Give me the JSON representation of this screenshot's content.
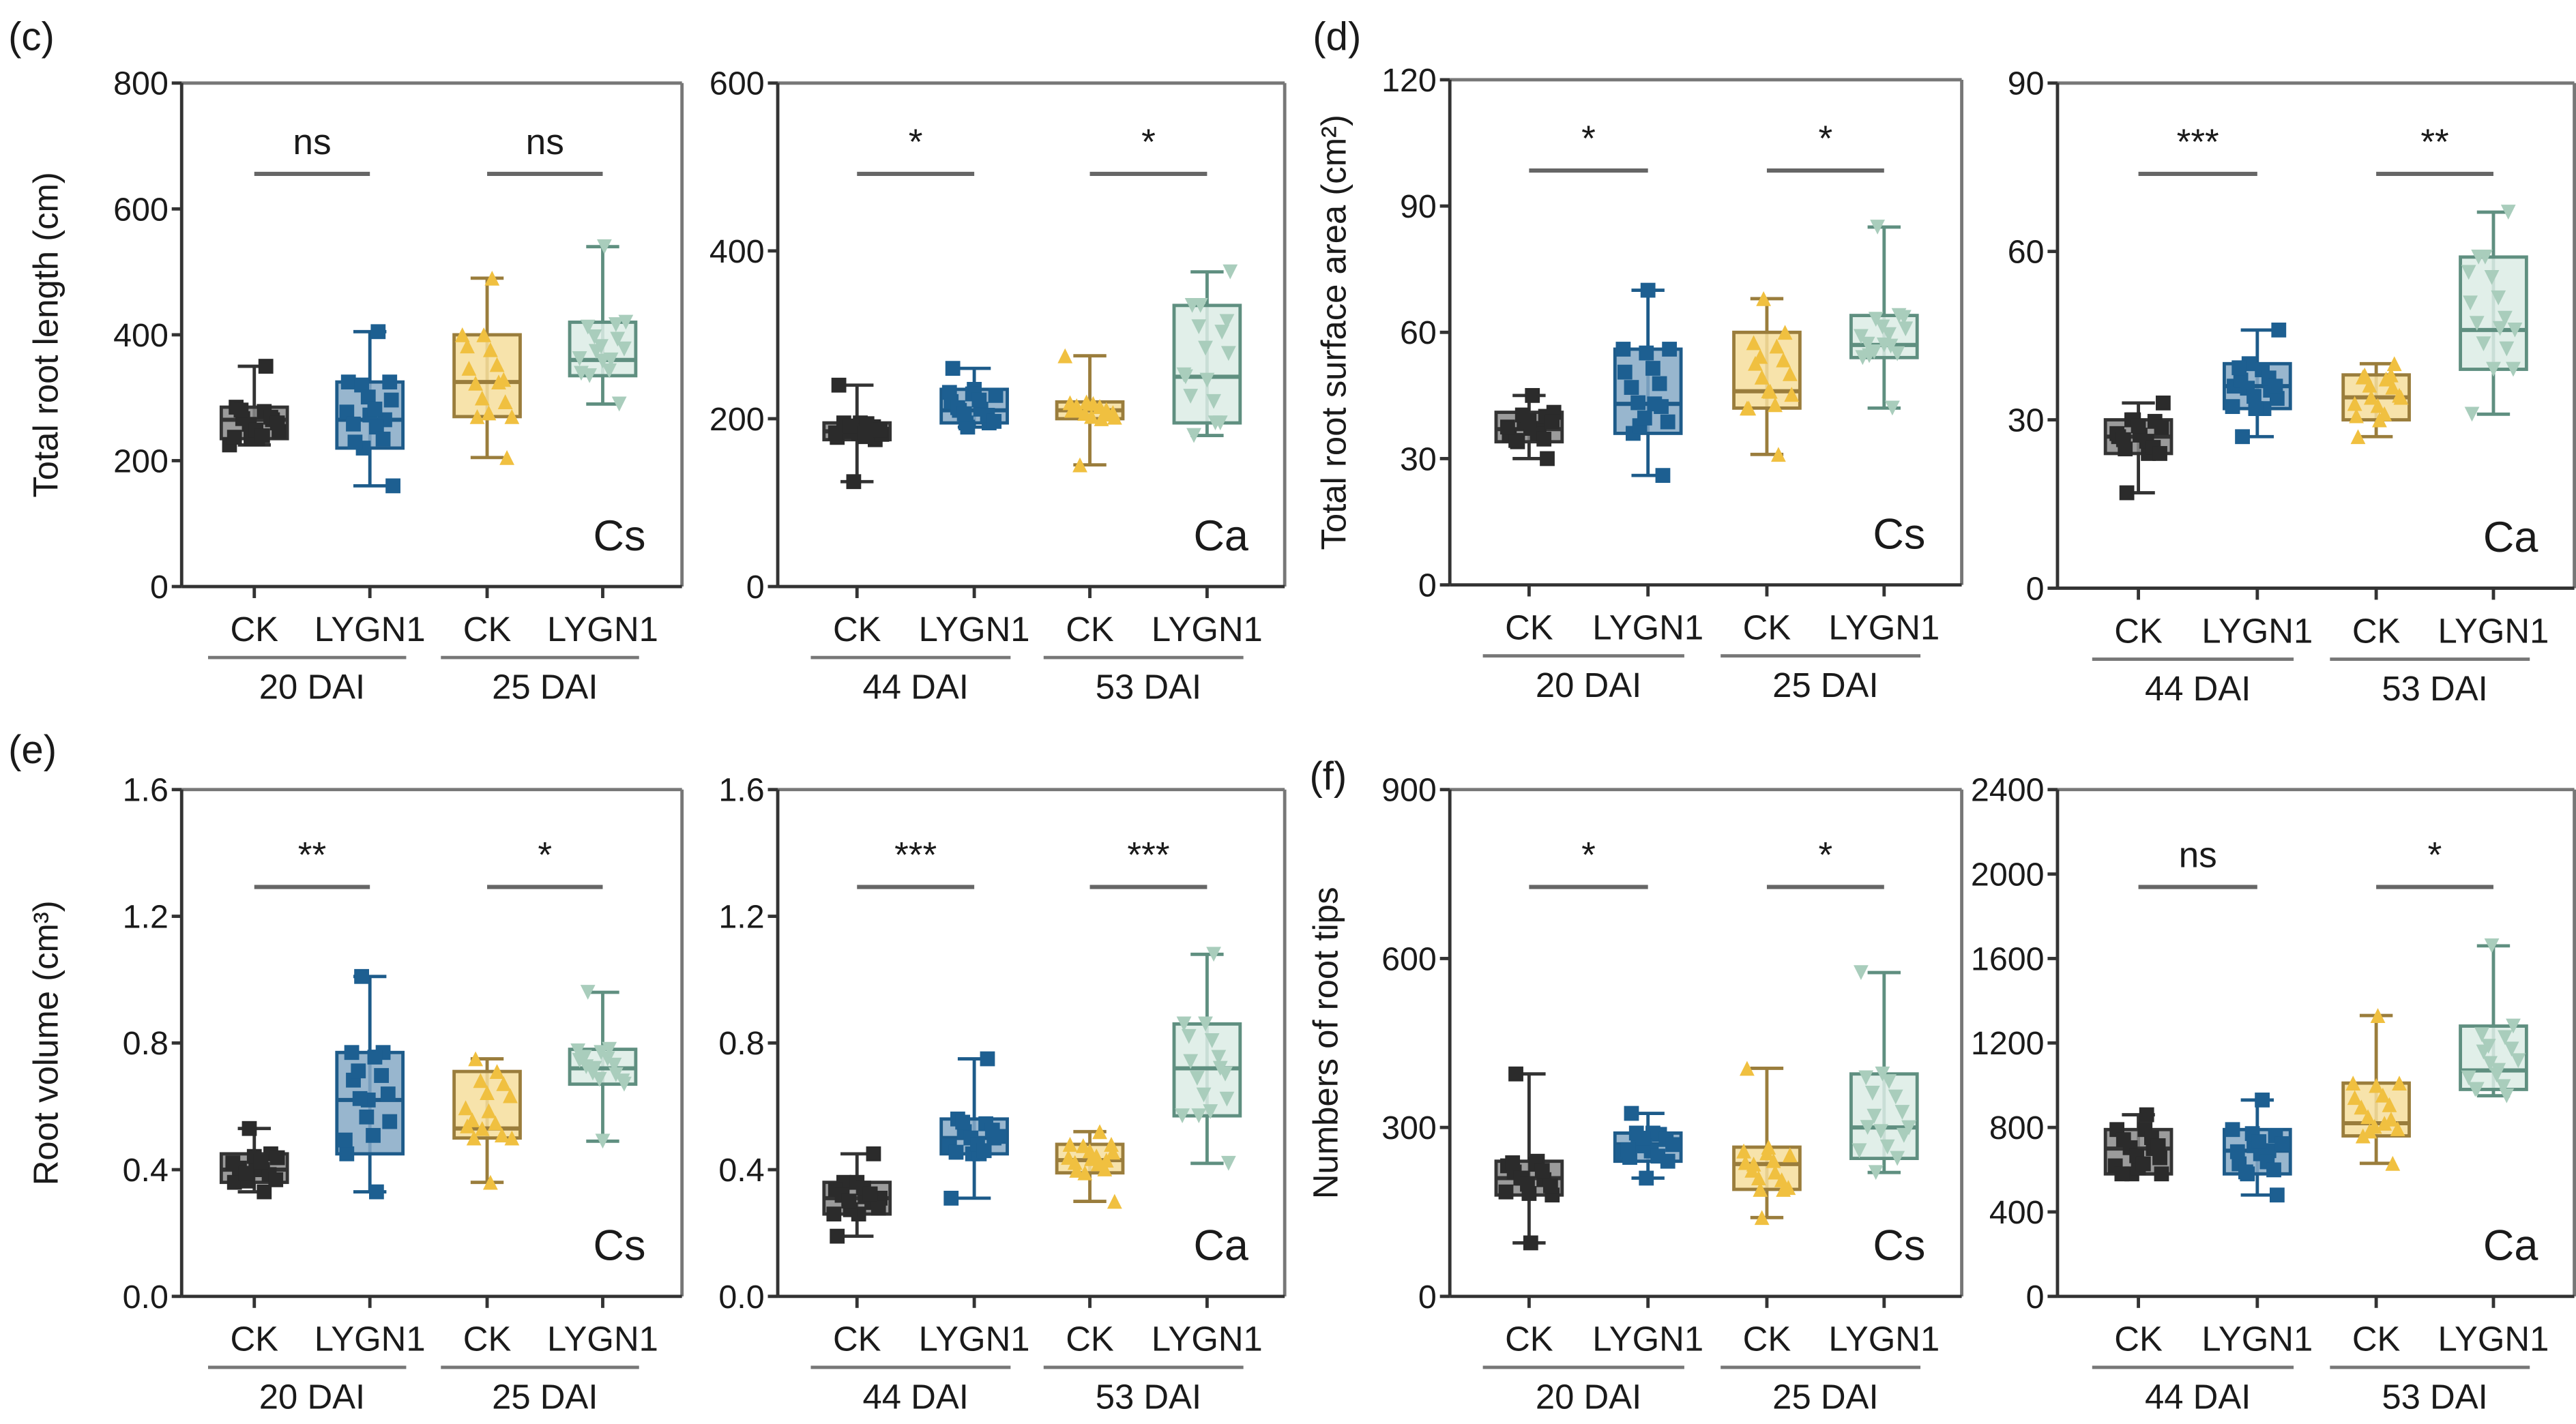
{
  "panel_letters": [
    "(c)",
    "(d)",
    "(e)",
    "(f)"
  ],
  "colors": {
    "CK_early": {
      "edge": "#333333",
      "fill": "#8a8a8a",
      "point": "#2b2b2b"
    },
    "LYGN1_early": {
      "edge": "#1d5b8a",
      "fill": "#86a9c6",
      "point": "#1d5f91"
    },
    "CK_late": {
      "edge": "#9a7d3c",
      "fill": "#f6de9c",
      "point": "#f0c040"
    },
    "LYGN1_late": {
      "edge": "#5f8f80",
      "fill": "#dcece5",
      "point": "#a9cdbc"
    }
  },
  "chart_data": [
    {
      "type": "box",
      "panel": "(c)",
      "ylabel": "Total root length (cm)",
      "ylim": [
        0,
        800
      ],
      "yticks": [
        "0",
        "200",
        "400",
        "600",
        "800"
      ],
      "species": "Cs",
      "groups": [
        {
          "label": "20 DAI",
          "categories": [
            "CK",
            "LYGN1"
          ]
        },
        {
          "label": "25 DAI",
          "categories": [
            "CK",
            "LYGN1"
          ]
        }
      ],
      "boxes": [
        {
          "min": 225,
          "q1": 235,
          "median": 265,
          "q3": 285,
          "max": 350
        },
        {
          "min": 160,
          "q1": 220,
          "median": 265,
          "q3": 325,
          "max": 405
        },
        {
          "min": 205,
          "q1": 270,
          "median": 325,
          "q3": 400,
          "max": 490
        },
        {
          "min": 290,
          "q1": 335,
          "median": 360,
          "q3": 420,
          "max": 540
        }
      ],
      "significance": [
        "ns",
        "ns"
      ]
    },
    {
      "type": "box",
      "panel": "(c)",
      "ylabel": "",
      "ylim": [
        0,
        600
      ],
      "yticks": [
        "0",
        "200",
        "400",
        "600"
      ],
      "species": "Ca",
      "groups": [
        {
          "label": "44 DAI",
          "categories": [
            "CK",
            "LYGN1"
          ]
        },
        {
          "label": "53 DAI",
          "categories": [
            "CK",
            "LYGN1"
          ]
        }
      ],
      "boxes": [
        {
          "min": 125,
          "q1": 175,
          "median": 185,
          "q3": 195,
          "max": 240
        },
        {
          "min": 190,
          "q1": 195,
          "median": 210,
          "q3": 235,
          "max": 260
        },
        {
          "min": 145,
          "q1": 200,
          "median": 210,
          "q3": 220,
          "max": 275
        },
        {
          "min": 180,
          "q1": 195,
          "median": 250,
          "q3": 335,
          "max": 375
        }
      ],
      "significance": [
        "*",
        "*"
      ]
    },
    {
      "type": "box",
      "panel": "(d)",
      "ylabel": "Total root surface area (cm²)",
      "ylim": [
        0,
        120
      ],
      "yticks": [
        "0",
        "30",
        "60",
        "90",
        "120"
      ],
      "species": "Cs",
      "groups": [
        {
          "label": "20 DAI",
          "categories": [
            "CK",
            "LYGN1"
          ]
        },
        {
          "label": "25 DAI",
          "categories": [
            "CK",
            "LYGN1"
          ]
        }
      ],
      "boxes": [
        {
          "min": 30,
          "q1": 34,
          "median": 37,
          "q3": 41,
          "max": 45
        },
        {
          "min": 26,
          "q1": 36,
          "median": 43,
          "q3": 56,
          "max": 70
        },
        {
          "min": 31,
          "q1": 42,
          "median": 46,
          "q3": 60,
          "max": 68
        },
        {
          "min": 42,
          "q1": 54,
          "median": 57,
          "q3": 64,
          "max": 85
        }
      ],
      "significance": [
        "*",
        "*"
      ]
    },
    {
      "type": "box",
      "panel": "(d)",
      "ylabel": "",
      "ylim": [
        0,
        90
      ],
      "yticks": [
        "0",
        "30",
        "60",
        "90"
      ],
      "species": "Ca",
      "groups": [
        {
          "label": "44 DAI",
          "categories": [
            "CK",
            "LYGN1"
          ]
        },
        {
          "label": "53 DAI",
          "categories": [
            "CK",
            "LYGN1"
          ]
        }
      ],
      "boxes": [
        {
          "min": 17,
          "q1": 24,
          "median": 27,
          "q3": 30,
          "max": 33
        },
        {
          "min": 27,
          "q1": 32,
          "median": 36,
          "q3": 40,
          "max": 46
        },
        {
          "min": 27,
          "q1": 30,
          "median": 34,
          "q3": 38,
          "max": 40
        },
        {
          "min": 31,
          "q1": 39,
          "median": 46,
          "q3": 59,
          "max": 67
        }
      ],
      "significance": [
        "***",
        "**"
      ]
    },
    {
      "type": "box",
      "panel": "(e)",
      "ylabel": "Root volume (cm³)",
      "ylim": [
        0,
        1.6
      ],
      "yticks": [
        "0.0",
        "0.4",
        "0.8",
        "1.2",
        "1.6"
      ],
      "species": "Cs",
      "groups": [
        {
          "label": "20 DAI",
          "categories": [
            "CK",
            "LYGN1"
          ]
        },
        {
          "label": "25 DAI",
          "categories": [
            "CK",
            "LYGN1"
          ]
        }
      ],
      "boxes": [
        {
          "min": 0.33,
          "q1": 0.36,
          "median": 0.4,
          "q3": 0.45,
          "max": 0.53
        },
        {
          "min": 0.33,
          "q1": 0.45,
          "median": 0.62,
          "q3": 0.77,
          "max": 1.01
        },
        {
          "min": 0.36,
          "q1": 0.5,
          "median": 0.53,
          "q3": 0.71,
          "max": 0.75
        },
        {
          "min": 0.49,
          "q1": 0.67,
          "median": 0.72,
          "q3": 0.78,
          "max": 0.96
        }
      ],
      "significance": [
        "**",
        "*"
      ]
    },
    {
      "type": "box",
      "panel": "(e)",
      "ylabel": "",
      "ylim": [
        0,
        1.6
      ],
      "yticks": [
        "0.0",
        "0.4",
        "0.8",
        "1.2",
        "1.6"
      ],
      "species": "Ca",
      "groups": [
        {
          "label": "44 DAI",
          "categories": [
            "CK",
            "LYGN1"
          ]
        },
        {
          "label": "53 DAI",
          "categories": [
            "CK",
            "LYGN1"
          ]
        }
      ],
      "boxes": [
        {
          "min": 0.19,
          "q1": 0.26,
          "median": 0.31,
          "q3": 0.36,
          "max": 0.45
        },
        {
          "min": 0.31,
          "q1": 0.45,
          "median": 0.5,
          "q3": 0.56,
          "max": 0.75
        },
        {
          "min": 0.3,
          "q1": 0.39,
          "median": 0.43,
          "q3": 0.48,
          "max": 0.52
        },
        {
          "min": 0.42,
          "q1": 0.57,
          "median": 0.72,
          "q3": 0.86,
          "max": 1.08
        }
      ],
      "significance": [
        "***",
        "***"
      ]
    },
    {
      "type": "box",
      "panel": "(f)",
      "ylabel": "Numbers of root tips",
      "ylim": [
        0,
        900
      ],
      "yticks": [
        "0",
        "300",
        "600",
        "900"
      ],
      "species": "Cs",
      "groups": [
        {
          "label": "20 DAI",
          "categories": [
            "CK",
            "LYGN1"
          ]
        },
        {
          "label": "25 DAI",
          "categories": [
            "CK",
            "LYGN1"
          ]
        }
      ],
      "boxes": [
        {
          "min": 95,
          "q1": 180,
          "median": 210,
          "q3": 240,
          "max": 395
        },
        {
          "min": 210,
          "q1": 240,
          "median": 270,
          "q3": 290,
          "max": 325
        },
        {
          "min": 140,
          "q1": 190,
          "median": 235,
          "q3": 265,
          "max": 405
        },
        {
          "min": 220,
          "q1": 245,
          "median": 300,
          "q3": 395,
          "max": 575
        }
      ],
      "significance": [
        "*",
        "*"
      ]
    },
    {
      "type": "box",
      "panel": "(f)",
      "ylabel": "",
      "ylim": [
        0,
        2400
      ],
      "yticks": [
        "0",
        "400",
        "800",
        "1200",
        "1600",
        "2000",
        "2400"
      ],
      "species": "Ca",
      "groups": [
        {
          "label": "44 DAI",
          "categories": [
            "CK",
            "LYGN1"
          ]
        },
        {
          "label": "53 DAI",
          "categories": [
            "CK",
            "LYGN1"
          ]
        }
      ],
      "boxes": [
        {
          "min": 580,
          "q1": 580,
          "median": 700,
          "q3": 790,
          "max": 860
        },
        {
          "min": 480,
          "q1": 580,
          "median": 690,
          "q3": 790,
          "max": 930
        },
        {
          "min": 630,
          "q1": 760,
          "median": 820,
          "q3": 1010,
          "max": 1330
        },
        {
          "min": 950,
          "q1": 980,
          "median": 1070,
          "q3": 1280,
          "max": 1660
        }
      ],
      "significance": [
        "ns",
        "*"
      ]
    }
  ]
}
